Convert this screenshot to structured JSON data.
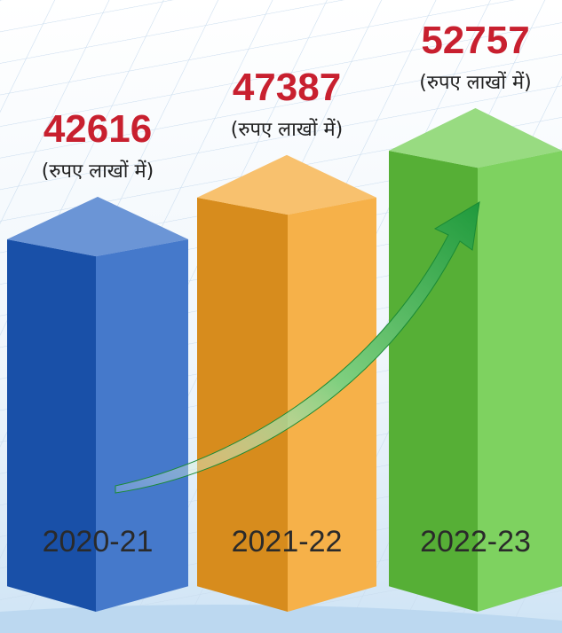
{
  "chart_data": {
    "type": "bar3d",
    "categories": [
      "2020-21",
      "2021-22",
      "2022-23"
    ],
    "values": [
      42616,
      47387,
      52757
    ],
    "unit_label": "(रुपए लाखों में)",
    "colors": [
      "#1d5cc0",
      "#f5a021",
      "#62c83e"
    ]
  }
}
